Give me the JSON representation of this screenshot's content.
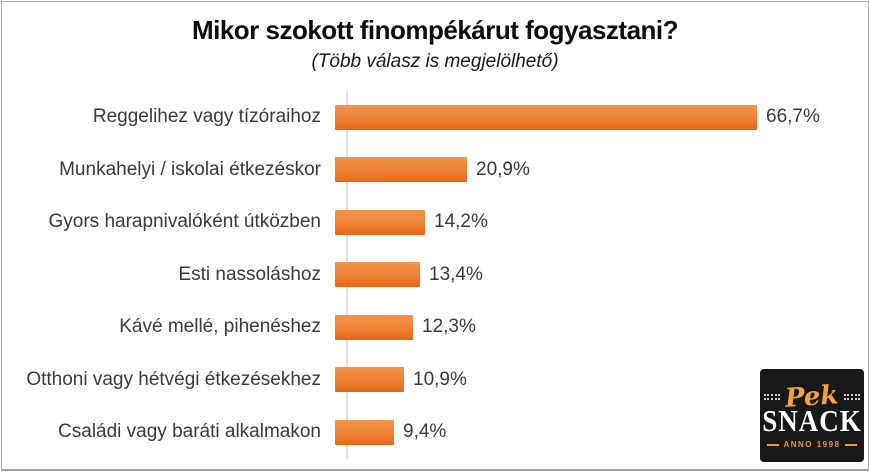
{
  "title": "Mikor szokott finompékárut fogyasztani?",
  "subtitle": "(Több válasz is megjelölhető)",
  "chart_data": {
    "type": "bar",
    "orientation": "horizontal",
    "title": "Mikor szokott finompékárut fogyasztani?",
    "subtitle": "(Több válasz is megjelölhető)",
    "categories": [
      "Reggelihez vagy tízóraihoz",
      "Munkahelyi / iskolai étkezéskor",
      "Gyors harapnivalóként útközben",
      "Esti nassoláshoz",
      "Kávé mellé, pihenéshez",
      "Otthoni vagy hétvégi étkezésekhez",
      "Családi vagy baráti alkalmakon"
    ],
    "values": [
      66.7,
      20.9,
      14.2,
      13.4,
      12.3,
      10.9,
      9.4
    ],
    "value_labels": [
      "66,7%",
      "20,9%",
      "14,2%",
      "13,4%",
      "12,3%",
      "10,9%",
      "9,4%"
    ],
    "value_suffix": "%",
    "xlim": [
      0,
      70
    ],
    "grid": false,
    "legend": null,
    "bar_color_top": "#f2944e",
    "bar_color_bottom": "#e86c1c",
    "axis_line_color": "#dde1e4",
    "label_color": "#3a3a3a"
  },
  "logo": {
    "script": "Pek",
    "main": "SNACK",
    "anno": "ANNO 1998",
    "background": "#181818",
    "accent": "#f2a23c",
    "main_color": "#ffffff"
  }
}
